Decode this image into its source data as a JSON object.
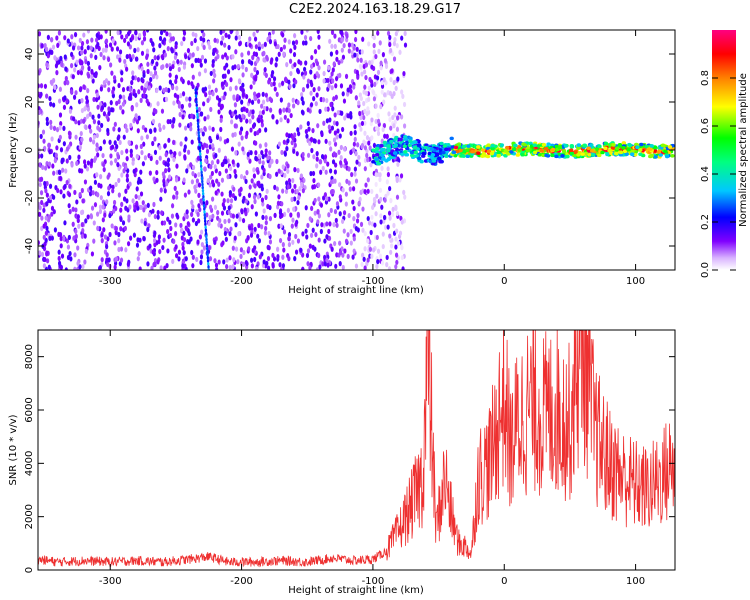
{
  "title": "C2E2.2024.163.18.29.G17",
  "chart_data": [
    {
      "type": "heatmap",
      "xlabel": "Height of straight line (km)",
      "ylabel": "Frequency (Hz)",
      "xlim": [
        -355,
        130
      ],
      "ylim": [
        -50,
        50
      ],
      "xticks": [
        -300,
        -200,
        -100,
        0,
        100
      ],
      "yticks": [
        -40,
        -20,
        0,
        20,
        40
      ],
      "colorbar": {
        "label": "Normalized spectral amplitude",
        "range": [
          0,
          1
        ],
        "ticks": [
          "0.0",
          "0.2",
          "0.4",
          "0.6",
          "0.8"
        ],
        "tick_values": [
          0.0,
          0.2,
          0.4,
          0.6,
          0.8
        ],
        "colors": [
          "#ffffff",
          "#e6c8ff",
          "#8000ff",
          "#0000ff",
          "#00c0ff",
          "#00ff80",
          "#00ff00",
          "#ffff00",
          "#ff8000",
          "#ff0000",
          "#ff00a0"
        ]
      },
      "features": [
        {
          "name": "noise band",
          "x_range": [
            -355,
            -90
          ],
          "y_range": [
            -50,
            50
          ],
          "amplitude": 0.2
        },
        {
          "name": "oblique streak",
          "x_start": -235,
          "x_end": -225,
          "y_start": 25,
          "y_end": -50,
          "amplitude": 0.35
        },
        {
          "name": "signal trace",
          "x_range": [
            -100,
            130
          ],
          "y_center": 0,
          "amplitude_peak": 0.95
        }
      ]
    },
    {
      "type": "line",
      "xlabel": "Height of straight line (km)",
      "ylabel": "SNR (10 * v/v)",
      "xlim": [
        -355,
        130
      ],
      "ylim": [
        0,
        9000
      ],
      "xticks": [
        -300,
        -200,
        -100,
        0,
        100
      ],
      "yticks": [
        0,
        2000,
        4000,
        6000,
        8000
      ],
      "color": "#ee3030",
      "series": [
        {
          "x": [
            -355,
            -340,
            -320,
            -300,
            -280,
            -260,
            -240,
            -225,
            -210,
            -190,
            -170,
            -150,
            -130,
            -115,
            -100,
            -90,
            -80,
            -70,
            -62,
            -58,
            -52,
            -45,
            -40,
            -35,
            -30,
            -25,
            -20,
            -15,
            -10,
            -5,
            0,
            5,
            10,
            20,
            30,
            40,
            50,
            55,
            60,
            65,
            70,
            80,
            90,
            100,
            110,
            120,
            130
          ],
          "y": [
            400,
            300,
            350,
            300,
            350,
            300,
            400,
            500,
            300,
            300,
            350,
            300,
            450,
            350,
            400,
            700,
            1500,
            2500,
            3500,
            8400,
            1500,
            3500,
            2000,
            1000,
            900,
            600,
            3500,
            3800,
            4200,
            5500,
            6500,
            4500,
            5500,
            6200,
            5800,
            6000,
            5500,
            7500,
            8800,
            6500,
            5000,
            4000,
            3500,
            3200,
            3000,
            3500,
            4000
          ]
        }
      ]
    }
  ]
}
